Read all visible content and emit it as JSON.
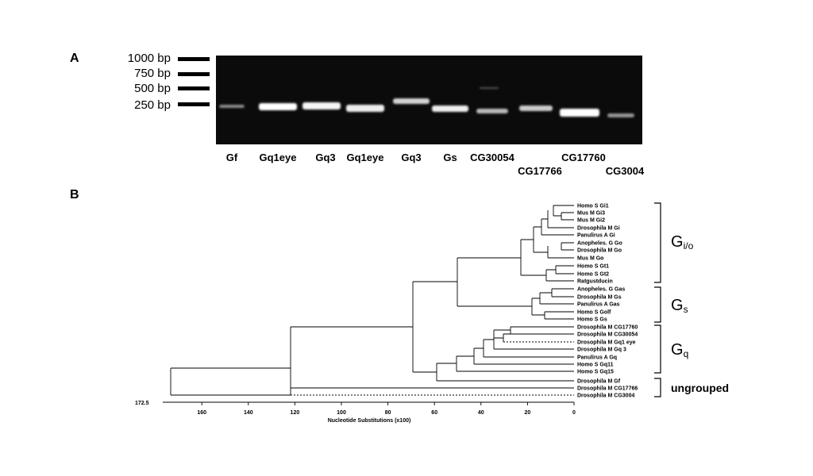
{
  "panel_a": {
    "label": "A",
    "ladder": [
      "1000 bp",
      "750 bp",
      "500 bp",
      "250 bp"
    ],
    "lanes": [
      {
        "label": "Gf",
        "brightness": 0.35
      },
      {
        "label": "Gq1eye",
        "brightness": 1.0
      },
      {
        "label": "Gq3",
        "brightness": 0.95
      },
      {
        "label": "Gq1eye",
        "brightness": 0.9
      },
      {
        "label": "Gq3",
        "brightness": 0.75
      },
      {
        "label": "Gs",
        "brightness": 0.9
      },
      {
        "label": "CG30054",
        "brightness": 0.6
      },
      {
        "label": "CG17766",
        "brightness": 0.7
      },
      {
        "label": "CG17760",
        "brightness": 1.0
      },
      {
        "label": "CG3004",
        "brightness": 0.4
      }
    ]
  },
  "panel_b": {
    "label": "B",
    "axis_title": "Nucleotide Substitutions (x100)",
    "axis_ticks": [
      "160",
      "140",
      "120",
      "100",
      "80",
      "60",
      "40",
      "20",
      "0"
    ],
    "root_label": "172.5",
    "taxa": [
      "Homo S Gi1",
      "Mus M Gi3",
      "Mus M Gi2",
      "Drosophila M Gi",
      "Panulirus A Gi",
      "Anopheles. G Go",
      "Drosophila M Go",
      "Mus M Go",
      "Homo S Gt1",
      "Homo S Gt2",
      "Ratgustducin",
      "Anopheles. G Gas",
      "Drosophila M Gs",
      "Panulirus A Gas",
      "Homo S Golf",
      "Homo S Gs",
      "Drosophila M CG17760",
      "Drosophila M CG30054",
      "Drosophila M Gq1 eye",
      "Drosophila M Gq 3",
      "Panulirus A Gq",
      "Homo S Gq11",
      "Homo S Gq15",
      "Drosophila M Gf",
      "Drosophila M CG17766",
      "Drosophila M CG3004"
    ],
    "groups": [
      {
        "main": "G",
        "sub": "i/o"
      },
      {
        "main": "G",
        "sub": "s"
      },
      {
        "main": "G",
        "sub": "q"
      },
      {
        "word": "ungrouped"
      }
    ]
  }
}
